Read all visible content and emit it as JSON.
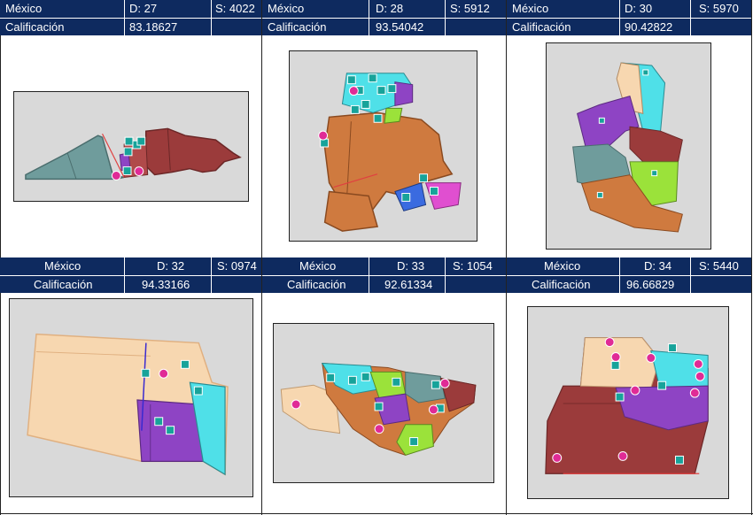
{
  "panels": [
    {
      "country": "México",
      "d": "D: 27",
      "s": "S: 4022",
      "label": "Calificación",
      "score": "83.18627"
    },
    {
      "country": "México",
      "d": "D: 28",
      "s": "S: 5912",
      "label": "Calificación",
      "score": "93.54042"
    },
    {
      "country": "México",
      "d": "D: 30",
      "s": "S: 5970",
      "label": "Calificación",
      "score": "90.42822"
    },
    {
      "country": "México",
      "d": "D: 32",
      "s": "S: 0974",
      "label": "Calificación",
      "score": "94.33166"
    },
    {
      "country": "México",
      "d": "D: 33",
      "s": "S: 1054",
      "label": "Calificación",
      "score": "92.61334"
    },
    {
      "country": "México",
      "d": "D: 34",
      "s": "S: 5440",
      "label": "Calificación",
      "score": "96.66829"
    }
  ],
  "marker_letters": {
    "school": "E",
    "center": "C"
  },
  "colors": {
    "header": "#0e2a5f",
    "teal": "#6f9c9c",
    "maroon": "#9b3b3b",
    "orange": "#cf7a3f",
    "purple": "#8e44c4",
    "cyan": "#4fe0e8",
    "peach": "#f7d7b0",
    "lime": "#9be23a",
    "blue": "#3a6be0",
    "magenta": "#e04fd0",
    "map_bg": "#d9d9d9"
  }
}
